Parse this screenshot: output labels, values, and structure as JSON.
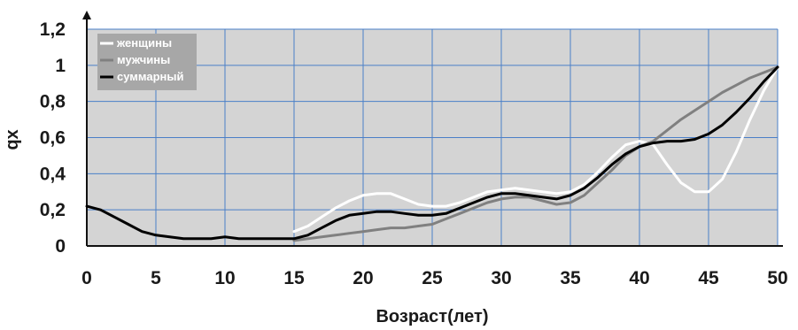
{
  "chart_data": {
    "type": "line",
    "title": "",
    "xlabel": "Возраст(лет)",
    "ylabel": "qx",
    "xlim": [
      0,
      50
    ],
    "ylim": [
      0,
      1.2
    ],
    "x_ticks": [
      0,
      5,
      10,
      15,
      20,
      25,
      30,
      35,
      40,
      45,
      50
    ],
    "x_tick_labels": [
      "0",
      "5",
      "10",
      "15",
      "20",
      "25",
      "30",
      "35",
      "40",
      "45",
      "50"
    ],
    "y_ticks": [
      0,
      0.2,
      0.4,
      0.6,
      0.8,
      1.0,
      1.2
    ],
    "y_tick_labels": [
      "0",
      "0,2",
      "0,4",
      "0,6",
      "0,8",
      "1",
      "1,2"
    ],
    "grid": true,
    "legend_position": "top-left",
    "plot_background": "#d4d4d4",
    "grid_color": "#4a7fc8",
    "series": [
      {
        "name": "женщины",
        "color": "#ffffff",
        "points": [
          [
            15,
            0.08
          ],
          [
            16,
            0.11
          ],
          [
            17,
            0.16
          ],
          [
            18,
            0.21
          ],
          [
            19,
            0.25
          ],
          [
            20,
            0.28
          ],
          [
            21,
            0.29
          ],
          [
            22,
            0.29
          ],
          [
            23,
            0.26
          ],
          [
            24,
            0.23
          ],
          [
            25,
            0.22
          ],
          [
            26,
            0.22
          ],
          [
            27,
            0.24
          ],
          [
            28,
            0.27
          ],
          [
            29,
            0.3
          ],
          [
            30,
            0.31
          ],
          [
            31,
            0.32
          ],
          [
            32,
            0.31
          ],
          [
            33,
            0.3
          ],
          [
            34,
            0.29
          ],
          [
            35,
            0.3
          ],
          [
            36,
            0.34
          ],
          [
            37,
            0.41
          ],
          [
            38,
            0.49
          ],
          [
            39,
            0.56
          ],
          [
            40,
            0.58
          ],
          [
            41,
            0.56
          ],
          [
            42,
            0.45
          ],
          [
            43,
            0.35
          ],
          [
            44,
            0.3
          ],
          [
            45,
            0.3
          ],
          [
            46,
            0.37
          ],
          [
            47,
            0.52
          ],
          [
            48,
            0.7
          ],
          [
            49,
            0.86
          ],
          [
            50,
            0.99
          ]
        ]
      },
      {
        "name": "мужчины",
        "color": "#808080",
        "points": [
          [
            15,
            0.03
          ],
          [
            16,
            0.04
          ],
          [
            17,
            0.05
          ],
          [
            18,
            0.06
          ],
          [
            19,
            0.07
          ],
          [
            20,
            0.08
          ],
          [
            21,
            0.09
          ],
          [
            22,
            0.1
          ],
          [
            23,
            0.1
          ],
          [
            24,
            0.11
          ],
          [
            25,
            0.12
          ],
          [
            26,
            0.15
          ],
          [
            27,
            0.18
          ],
          [
            28,
            0.21
          ],
          [
            29,
            0.24
          ],
          [
            30,
            0.26
          ],
          [
            31,
            0.27
          ],
          [
            32,
            0.27
          ],
          [
            33,
            0.25
          ],
          [
            34,
            0.23
          ],
          [
            35,
            0.24
          ],
          [
            36,
            0.28
          ],
          [
            37,
            0.35
          ],
          [
            38,
            0.42
          ],
          [
            39,
            0.5
          ],
          [
            40,
            0.55
          ],
          [
            41,
            0.58
          ],
          [
            42,
            0.64
          ],
          [
            43,
            0.7
          ],
          [
            44,
            0.75
          ],
          [
            45,
            0.8
          ],
          [
            46,
            0.85
          ],
          [
            47,
            0.89
          ],
          [
            48,
            0.93
          ],
          [
            49,
            0.96
          ],
          [
            50,
            0.99
          ]
        ]
      },
      {
        "name": "суммарный",
        "color": "#000000",
        "points": [
          [
            0,
            0.22
          ],
          [
            1,
            0.2
          ],
          [
            2,
            0.16
          ],
          [
            3,
            0.12
          ],
          [
            4,
            0.08
          ],
          [
            5,
            0.06
          ],
          [
            6,
            0.05
          ],
          [
            7,
            0.04
          ],
          [
            8,
            0.04
          ],
          [
            9,
            0.04
          ],
          [
            10,
            0.05
          ],
          [
            11,
            0.04
          ],
          [
            12,
            0.04
          ],
          [
            13,
            0.04
          ],
          [
            14,
            0.04
          ],
          [
            15,
            0.04
          ],
          [
            16,
            0.06
          ],
          [
            17,
            0.1
          ],
          [
            18,
            0.14
          ],
          [
            19,
            0.17
          ],
          [
            20,
            0.18
          ],
          [
            21,
            0.19
          ],
          [
            22,
            0.19
          ],
          [
            23,
            0.18
          ],
          [
            24,
            0.17
          ],
          [
            25,
            0.17
          ],
          [
            26,
            0.18
          ],
          [
            27,
            0.21
          ],
          [
            28,
            0.24
          ],
          [
            29,
            0.27
          ],
          [
            30,
            0.29
          ],
          [
            31,
            0.29
          ],
          [
            32,
            0.28
          ],
          [
            33,
            0.27
          ],
          [
            34,
            0.26
          ],
          [
            35,
            0.28
          ],
          [
            36,
            0.32
          ],
          [
            37,
            0.38
          ],
          [
            38,
            0.45
          ],
          [
            39,
            0.51
          ],
          [
            40,
            0.55
          ],
          [
            41,
            0.57
          ],
          [
            42,
            0.58
          ],
          [
            43,
            0.58
          ],
          [
            44,
            0.59
          ],
          [
            45,
            0.62
          ],
          [
            46,
            0.67
          ],
          [
            47,
            0.74
          ],
          [
            48,
            0.82
          ],
          [
            49,
            0.91
          ],
          [
            50,
            0.99
          ]
        ]
      }
    ]
  }
}
